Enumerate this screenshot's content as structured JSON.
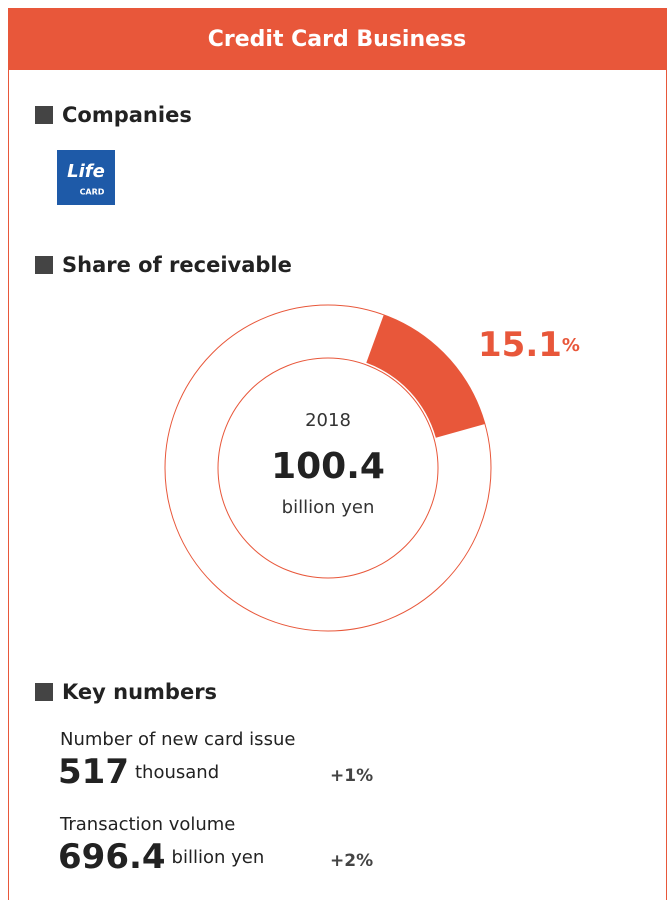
{
  "header": {
    "title": "Credit Card Business"
  },
  "companies": {
    "heading": "Companies",
    "logo": {
      "line1": "Life",
      "line2": "CARD"
    }
  },
  "share": {
    "heading": "Share of receivable",
    "value": 15.1,
    "unit": "%",
    "year": "2018",
    "amount": "100.4",
    "amount_unit": "billion yen",
    "color": "#e8573a"
  },
  "key_numbers": {
    "heading": "Key numbers",
    "items": [
      {
        "label": "Number of new card issue",
        "value": "517",
        "unit": "thousand",
        "change": "+1%"
      },
      {
        "label": "Transaction volume",
        "value": "696.4",
        "unit": "billion yen",
        "change": "+2%"
      }
    ]
  }
}
